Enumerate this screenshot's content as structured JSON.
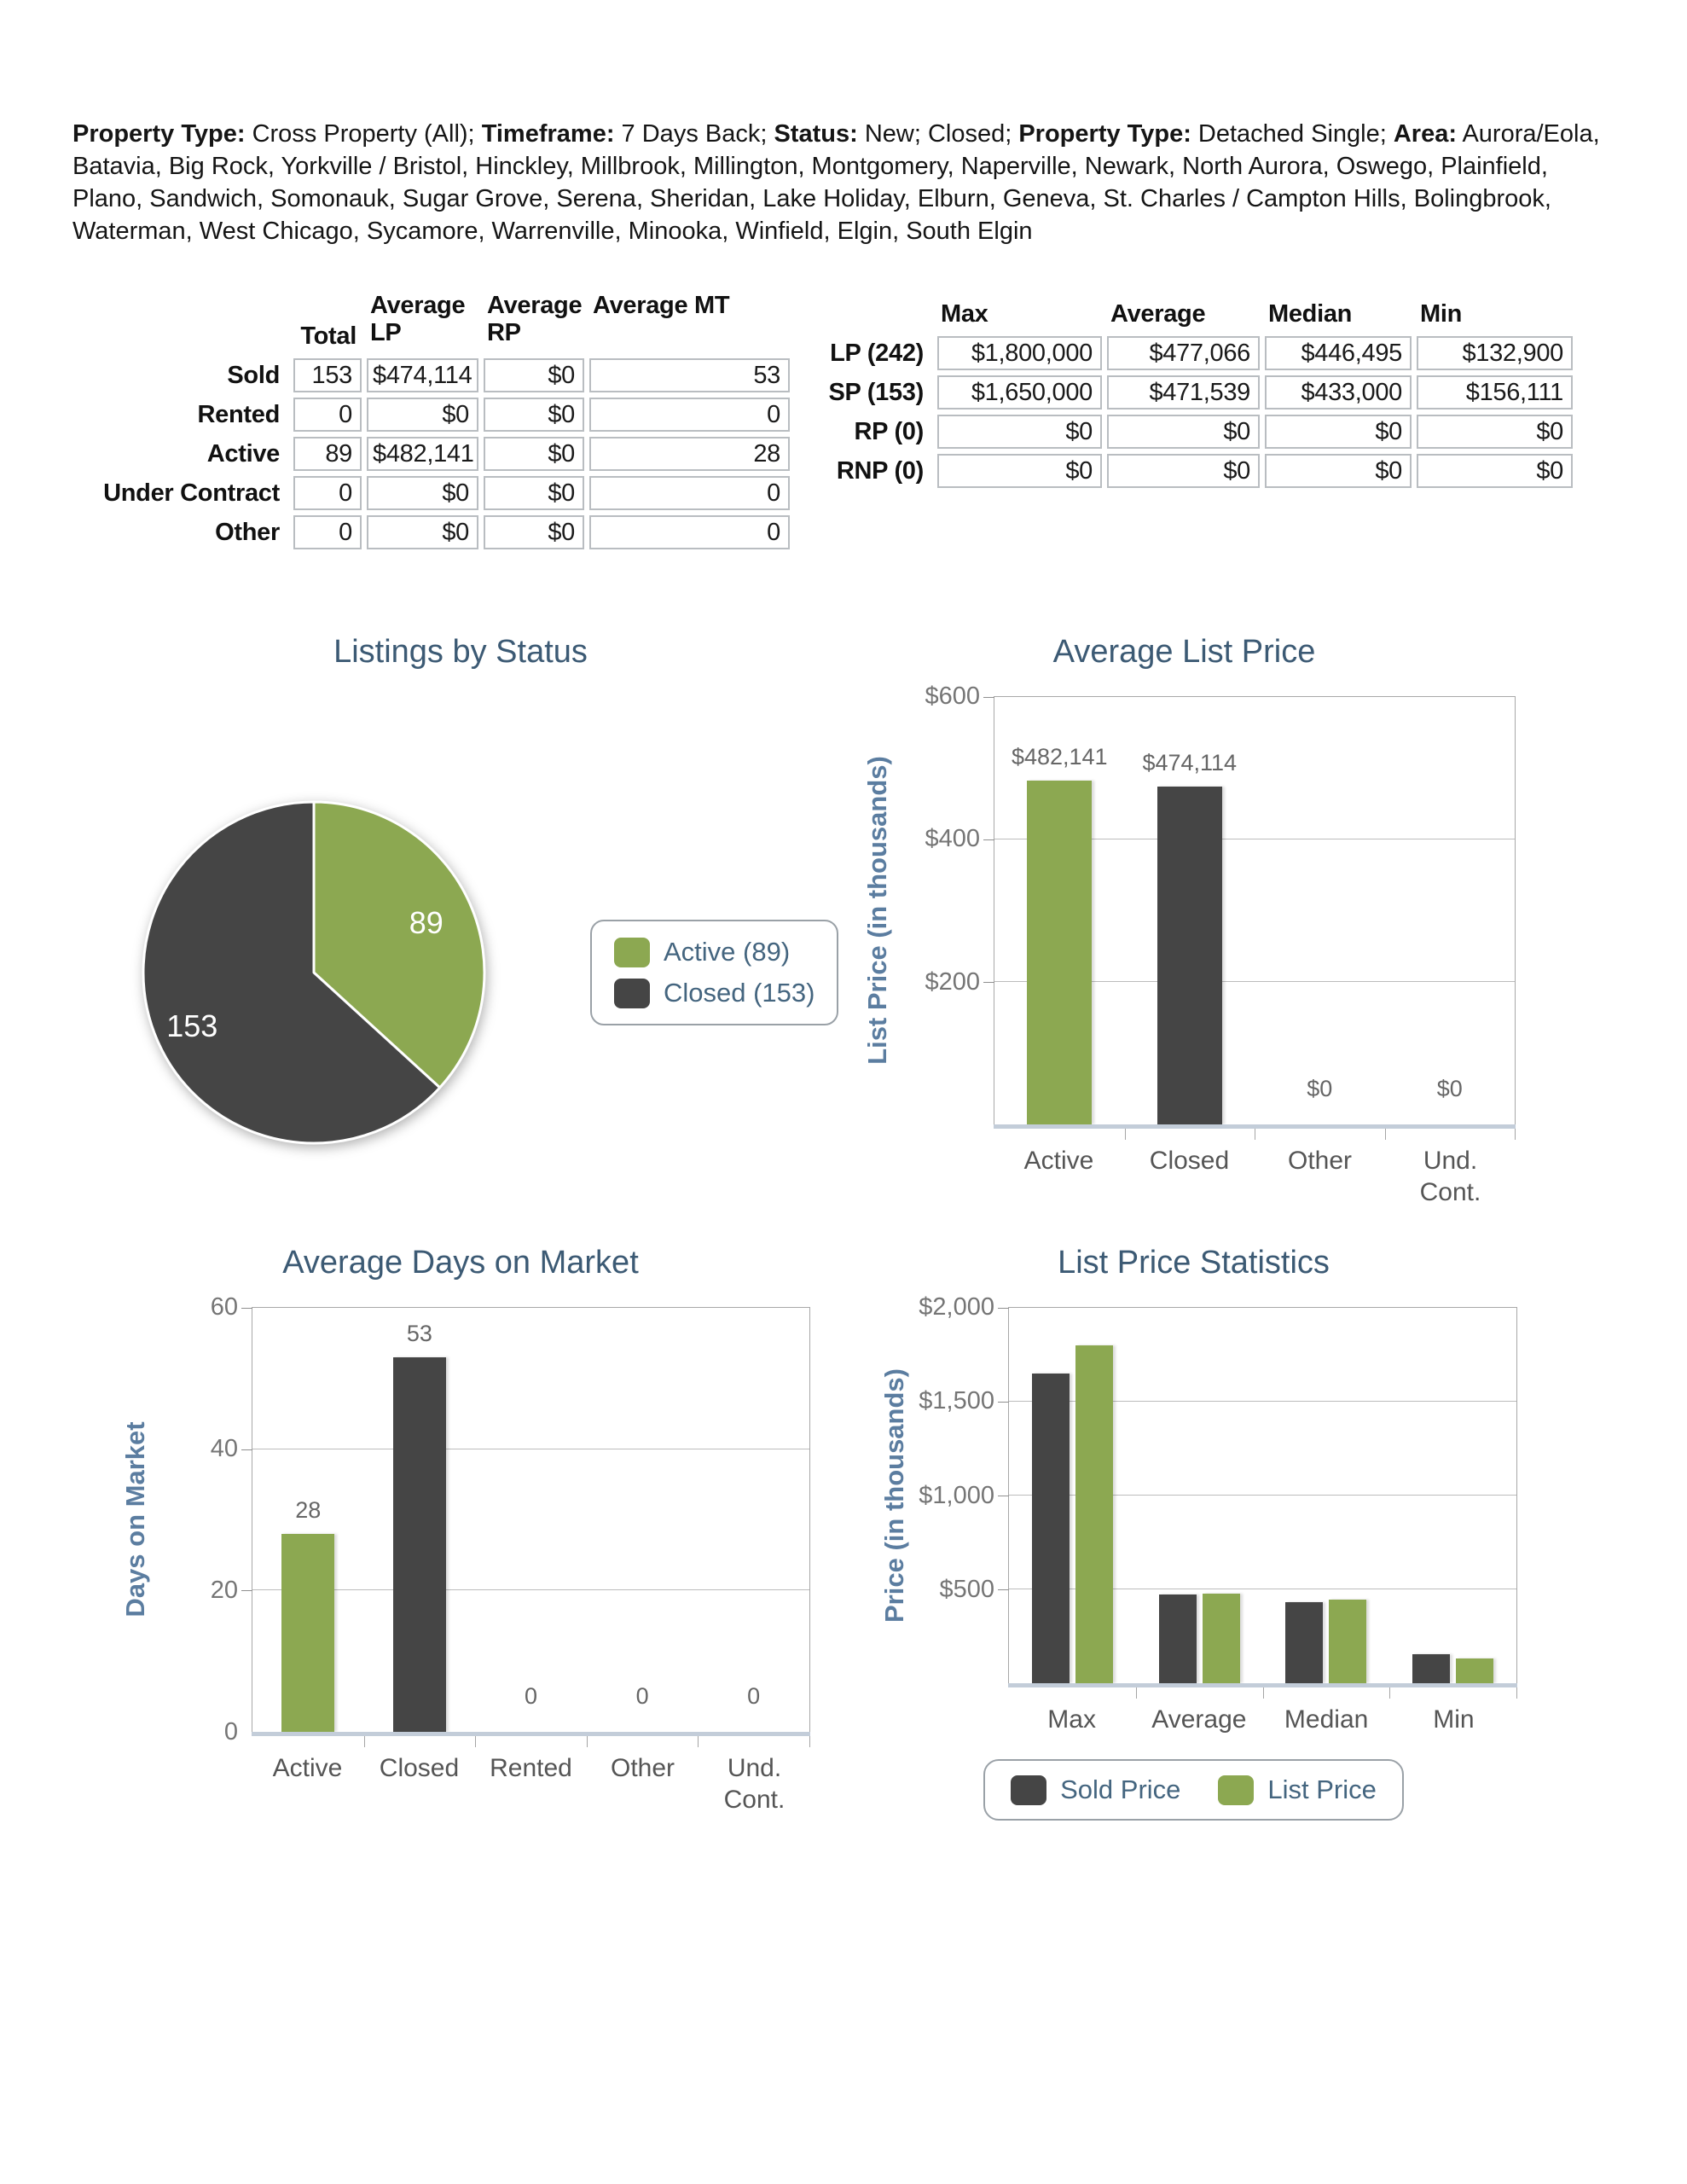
{
  "header": {
    "segments": [
      {
        "label": "Property Type:",
        "text": " Cross Property (All); "
      },
      {
        "label": "Timeframe:",
        "text": " 7 Days Back; "
      },
      {
        "label": "Status:",
        "text": " New; Closed; "
      },
      {
        "label": "Property Type:",
        "text": " Detached Single; "
      },
      {
        "label": "Area:",
        "text": " Aurora/Eola, Batavia, Big Rock, Yorkville / Bristol, Hinckley, Millbrook, Millington, Montgomery, Naperville, Newark, North Aurora, Oswego, Plainfield, Plano, Sandwich, Somonauk, Sugar Grove, Serena, Sheridan, Lake Holiday, Elburn, Geneva, St. Charles / Campton Hills, Bolingbrook, Waterman, West Chicago, Sycamore, Warrenville, Minooka, Winfield, Elgin, South Elgin"
      }
    ]
  },
  "status_table": {
    "columns": [
      "Total",
      "Average LP",
      "Average RP",
      "Average MT"
    ],
    "rows": [
      {
        "label": "Sold",
        "cells": [
          "153",
          "$474,114",
          "$0",
          "53"
        ]
      },
      {
        "label": "Rented",
        "cells": [
          "0",
          "$0",
          "$0",
          "0"
        ]
      },
      {
        "label": "Active",
        "cells": [
          "89",
          "$482,141",
          "$0",
          "28"
        ]
      },
      {
        "label": "Under Contract",
        "cells": [
          "0",
          "$0",
          "$0",
          "0"
        ]
      },
      {
        "label": "Other",
        "cells": [
          "0",
          "$0",
          "$0",
          "0"
        ]
      }
    ]
  },
  "price_table": {
    "columns": [
      "Max",
      "Average",
      "Median",
      "Min"
    ],
    "rows": [
      {
        "label": "LP (242)",
        "cells": [
          "$1,800,000",
          "$477,066",
          "$446,495",
          "$132,900"
        ]
      },
      {
        "label": "SP (153)",
        "cells": [
          "$1,650,000",
          "$471,539",
          "$433,000",
          "$156,111"
        ]
      },
      {
        "label": "RP (0)",
        "cells": [
          "$0",
          "$0",
          "$0",
          "$0"
        ]
      },
      {
        "label": "RNP (0)",
        "cells": [
          "$0",
          "$0",
          "$0",
          "$0"
        ]
      }
    ]
  },
  "colors": {
    "green": "#8CA851",
    "dark": "#454545",
    "title_blue": "#3c5a74",
    "axis_blue": "#5b7da0"
  },
  "chart_data": [
    {
      "type": "pie",
      "title": "Listings by Status",
      "labels": [
        "Active",
        "Closed"
      ],
      "values": [
        89,
        153
      ],
      "colors": [
        "#8CA851",
        "#454545"
      ],
      "slice_labels": [
        "89",
        "153"
      ],
      "legend": [
        "Active (89)",
        "Closed (153)"
      ],
      "legend_position": "right"
    },
    {
      "type": "bar",
      "title": "Average List Price",
      "ylabel": "List Price (in thousands)",
      "categories": [
        "Active",
        "Closed",
        "Other",
        "Und. Cont."
      ],
      "values": [
        482.141,
        474.114,
        0,
        0
      ],
      "bar_colors": [
        "#8CA851",
        "#454545",
        "#8CA851",
        "#454545"
      ],
      "data_labels": [
        "$482,141",
        "$474,114",
        "$0",
        "$0"
      ],
      "ylim": [
        0,
        600
      ],
      "yticks": [
        {
          "value": 200,
          "label": "$200"
        },
        {
          "value": 400,
          "label": "$400"
        },
        {
          "value": 600,
          "label": "$600"
        }
      ],
      "grid": true
    },
    {
      "type": "bar",
      "title": "Average Days on Market",
      "ylabel": "Days on Market",
      "categories": [
        "Active",
        "Closed",
        "Rented",
        "Other",
        "Und. Cont."
      ],
      "values": [
        28,
        53,
        0,
        0,
        0
      ],
      "bar_colors": [
        "#8CA851",
        "#454545",
        "#8CA851",
        "#454545",
        "#8CA851"
      ],
      "data_labels": [
        "28",
        "53",
        "0",
        "0",
        "0"
      ],
      "ylim": [
        0,
        60
      ],
      "yticks": [
        {
          "value": 0,
          "label": "0"
        },
        {
          "value": 20,
          "label": "20"
        },
        {
          "value": 40,
          "label": "40"
        },
        {
          "value": 60,
          "label": "60"
        }
      ],
      "grid": true
    },
    {
      "type": "bar",
      "title": "List Price Statistics",
      "ylabel": "Price (in thousands)",
      "categories": [
        "Max",
        "Average",
        "Median",
        "Min"
      ],
      "series": [
        {
          "name": "Sold Price",
          "color": "#454545",
          "values": [
            1650,
            471.539,
            433,
            156.111
          ]
        },
        {
          "name": "List Price",
          "color": "#8CA851",
          "values": [
            1800,
            477.066,
            446.495,
            132.9
          ]
        }
      ],
      "ylim": [
        0,
        2000
      ],
      "yticks": [
        {
          "value": 500,
          "label": "$500"
        },
        {
          "value": 1000,
          "label": "$1,000"
        },
        {
          "value": 1500,
          "label": "$1,500"
        },
        {
          "value": 2000,
          "label": "$2,000"
        }
      ],
      "grid": true,
      "legend_position": "bottom"
    }
  ]
}
